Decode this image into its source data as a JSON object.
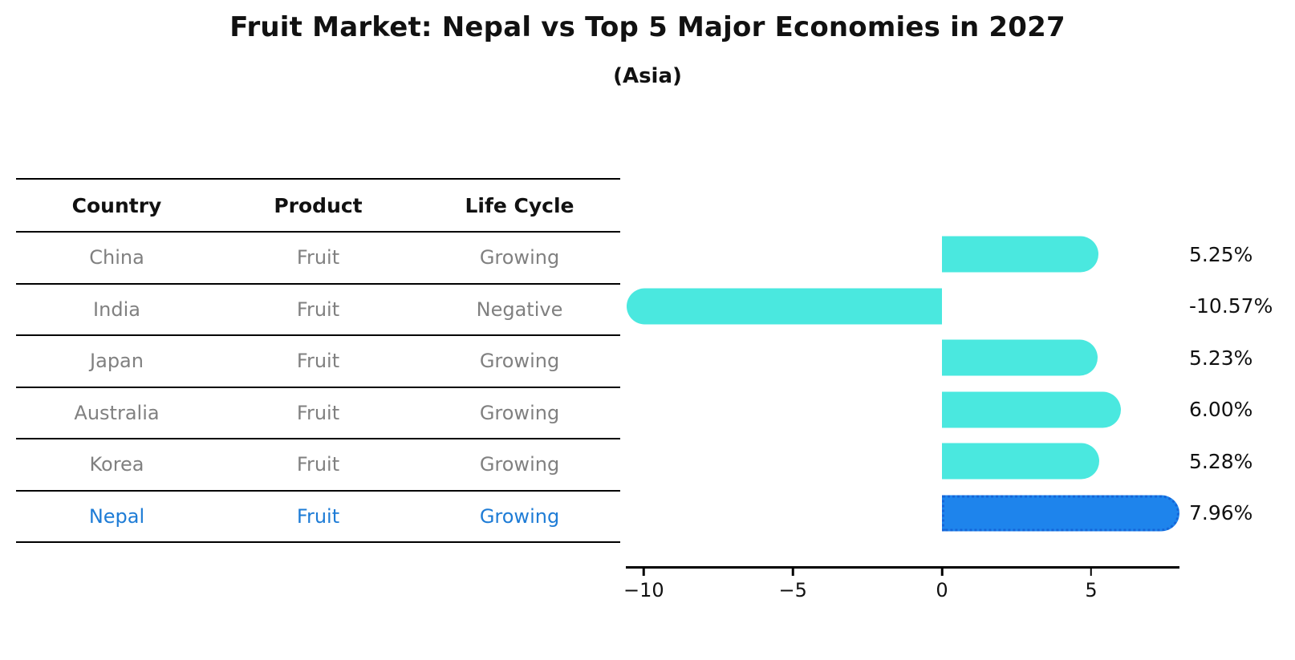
{
  "header": {
    "title": "Fruit Market: Nepal vs Top 5 Major Economies in 2027",
    "subtitle": "(Asia)"
  },
  "table": {
    "headers": [
      "Country",
      "Product",
      "Life Cycle"
    ],
    "rows": [
      {
        "country": "China",
        "product": "Fruit",
        "life_cycle": "Growing",
        "highlight": false
      },
      {
        "country": "India",
        "product": "Fruit",
        "life_cycle": "Negative",
        "highlight": false
      },
      {
        "country": "Japan",
        "product": "Fruit",
        "life_cycle": "Growing",
        "highlight": false
      },
      {
        "country": "Australia",
        "product": "Fruit",
        "life_cycle": "Growing",
        "highlight": false
      },
      {
        "country": "Korea",
        "product": "Fruit",
        "life_cycle": "Growing",
        "highlight": false
      },
      {
        "country": "Nepal",
        "product": "Fruit",
        "life_cycle": "Growing",
        "highlight": true
      }
    ]
  },
  "chart_data": {
    "type": "bar",
    "orientation": "horizontal",
    "title": "Fruit Market: Nepal vs Top 5 Major Economies in 2027",
    "subtitle": "(Asia)",
    "categories": [
      "China",
      "India",
      "Japan",
      "Australia",
      "Korea",
      "Nepal"
    ],
    "values": [
      5.25,
      -10.57,
      5.23,
      6.0,
      5.28,
      7.96
    ],
    "value_labels": [
      "5.25%",
      "-10.57%",
      "5.23%",
      "6.00%",
      "5.28%",
      "7.96%"
    ],
    "highlight_index": 5,
    "xlim": [
      -10.6,
      7.96
    ],
    "x_ticks": [
      -10,
      -5,
      0,
      5
    ],
    "x_tick_labels": [
      "−10",
      "−5",
      "0",
      "5"
    ],
    "grid": false,
    "legend": false,
    "colors": {
      "bar": "#4AE8DF",
      "highlight_bar": "#1E84EC",
      "highlight_border": "#1565D8",
      "axis": "#000000",
      "value_label": "#111111"
    }
  },
  "colors": {
    "text_gray": "#808080",
    "highlight_text": "#1E7CD6"
  }
}
